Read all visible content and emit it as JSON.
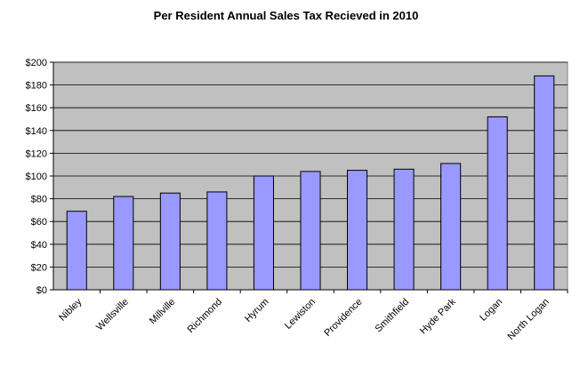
{
  "chart_data": {
    "type": "bar",
    "title": "Per Resident Annual Sales Tax Recieved in 2010",
    "xlabel": "",
    "ylabel": "",
    "categories": [
      "Nibley",
      "Wellsville",
      "Millville",
      "Richmond",
      "Hyrum",
      "Lewiston",
      "Providence",
      "Smithfield",
      "Hyde Park",
      "Logan",
      "North Logan"
    ],
    "values": [
      69,
      82,
      85,
      86,
      100,
      104,
      105,
      106,
      111,
      152,
      188
    ],
    "ylim": [
      0,
      200
    ],
    "yticks": [
      "$0",
      "$20",
      "$40",
      "$60",
      "$80",
      "$100",
      "$120",
      "$140",
      "$160",
      "$180",
      "$200"
    ],
    "grid": true,
    "legend": "none",
    "colors": {
      "bar_fill": "#9999ff",
      "bar_stroke": "#000000",
      "plot_bg": "#c0c0c0",
      "gridline": "#000000"
    }
  }
}
